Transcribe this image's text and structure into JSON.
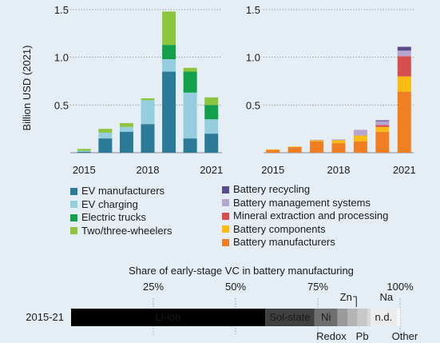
{
  "chart_data": [
    {
      "type": "bar",
      "stacked": true,
      "ylabel": "Billion USD (2021)",
      "ylim": [
        0,
        1.5
      ],
      "yticks": [
        "0.5",
        "1.0",
        "1.5"
      ],
      "xtick_labels": [
        "2015",
        "2018",
        "2021"
      ],
      "categories": [
        "2015",
        "2016",
        "2017",
        "2018",
        "2019",
        "2020",
        "2021"
      ],
      "grid": true,
      "series": [
        {
          "name": "EV manufacturers",
          "color": "#2b7a98",
          "values": [
            0.01,
            0.15,
            0.22,
            0.3,
            0.85,
            0.15,
            0.2
          ]
        },
        {
          "name": "EV charging",
          "color": "#95cfdf",
          "values": [
            0.01,
            0.06,
            0.05,
            0.25,
            0.13,
            0.48,
            0.15
          ]
        },
        {
          "name": "Electric trucks",
          "color": "#13a04b",
          "values": [
            0.0,
            0.0,
            0.0,
            0.0,
            0.15,
            0.22,
            0.15
          ]
        },
        {
          "name": "Two/three-wheelers",
          "color": "#8cc63f",
          "values": [
            0.02,
            0.04,
            0.04,
            0.02,
            0.35,
            0.04,
            0.08
          ]
        }
      ]
    },
    {
      "type": "bar",
      "stacked": true,
      "ylim": [
        0,
        1.5
      ],
      "yticks": [
        "0.5",
        "1.0",
        "1.5"
      ],
      "xtick_labels": [
        "2015",
        "2018",
        "2021"
      ],
      "categories": [
        "2015",
        "2016",
        "2017",
        "2018",
        "2019",
        "2020",
        "2021"
      ],
      "grid": true,
      "series": [
        {
          "name": "Battery manufacturers",
          "color": "#f07e23",
          "values": [
            0.03,
            0.06,
            0.12,
            0.1,
            0.12,
            0.22,
            0.64
          ]
        },
        {
          "name": "Battery components",
          "color": "#fbbc12",
          "values": [
            0.005,
            0.005,
            0.01,
            0.03,
            0.06,
            0.05,
            0.16
          ]
        },
        {
          "name": "Mineral extraction and processing",
          "color": "#d64e4e",
          "values": [
            0.0,
            0.0,
            0.0,
            0.0,
            0.0,
            0.02,
            0.21
          ]
        },
        {
          "name": "Battery management systems",
          "color": "#b6a6cf",
          "values": [
            0.0,
            0.0,
            0.005,
            0.01,
            0.06,
            0.04,
            0.06
          ]
        },
        {
          "name": "Battery recycling",
          "color": "#5b4a8d",
          "values": [
            0.0,
            0.0,
            0.0,
            0.0,
            0.0,
            0.01,
            0.04
          ]
        }
      ]
    },
    {
      "type": "bar",
      "orientation": "horizontal",
      "stacked": true,
      "title": "Share of early-stage VC in battery manufacturing",
      "categories": [
        "2015-21"
      ],
      "xlim": [
        0,
        100
      ],
      "xticks": [
        "25%",
        "50%",
        "75%",
        "100%"
      ],
      "segments": [
        {
          "label": "Li-ion",
          "value": 59,
          "color": "#000000",
          "text_color": "#ffffff",
          "label_pos": "inside"
        },
        {
          "label": "Sol-state",
          "value": 15,
          "color": "#404040",
          "text_color": "#ffffff",
          "label_pos": "inside"
        },
        {
          "label": "Ni",
          "value": 7,
          "color": "#6e6e6e",
          "text_color": "#ffffff",
          "label_pos": "inside"
        },
        {
          "label": "Redox",
          "value": 3,
          "color": "#9a9a9a",
          "label_pos": "below"
        },
        {
          "label": "Zn",
          "value": 3,
          "color": "#b4b4b4",
          "label_pos": "above"
        },
        {
          "label": "Pb",
          "value": 3,
          "color": "#c8c8c8",
          "label_pos": "below"
        },
        {
          "label": "Na",
          "value": 1,
          "color": "#d8d8d8",
          "label_pos": "above"
        },
        {
          "label": "n.d.",
          "value": 8,
          "color": "#ececec",
          "text_color": "#1a1a1a",
          "label_pos": "inside"
        },
        {
          "label": "Other",
          "value": 1,
          "color": "#f6f6f6",
          "label_pos": "below"
        }
      ]
    }
  ],
  "legend_left": [
    "EV manufacturers",
    "EV charging",
    "Electric trucks",
    "Two/three-wheelers"
  ],
  "legend_right": [
    "Battery recycling",
    "Battery management systems",
    "Mineral extraction and processing",
    "Battery components",
    "Battery manufacturers"
  ]
}
